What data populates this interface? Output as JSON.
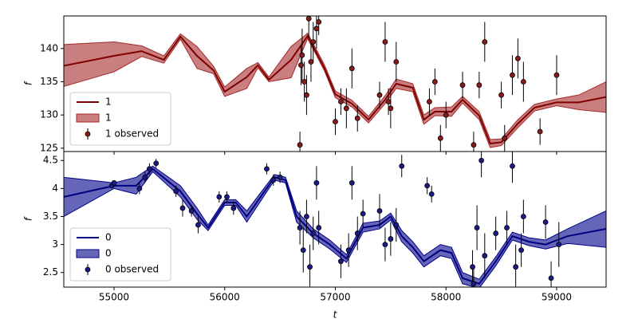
{
  "chart_data": [
    {
      "type": "line",
      "ylabel": "f",
      "legend": "lower left",
      "xlim": [
        54546,
        59447
      ],
      "ylim": [
        124.5,
        144.9
      ],
      "yticks": [
        125,
        130,
        135,
        140
      ],
      "x": [
        54546,
        55000,
        55250,
        55450,
        55600,
        55750,
        55900,
        56000,
        56200,
        56300,
        56400,
        56600,
        56750,
        56900,
        57000,
        57150,
        57300,
        57450,
        57550,
        57700,
        57800,
        57900,
        58050,
        58150,
        58300,
        58400,
        58500,
        58650,
        58800,
        59000,
        59200,
        59447
      ],
      "series": [
        {
          "name": "1",
          "color": "#800000",
          "values": [
            137.4,
            138.9,
            139.6,
            138.3,
            141.8,
            138.9,
            136.7,
            133.5,
            135.7,
            137.5,
            135.3,
            138.3,
            141.9,
            137.1,
            133.1,
            131.7,
            129.3,
            132.3,
            134.7,
            134.1,
            129.3,
            130.5,
            130.5,
            132.3,
            129.9,
            125.7,
            125.9,
            128.7,
            131.1,
            131.9,
            131.9,
            132.7
          ]
        },
        {
          "name": "1",
          "color": "#a52a2a",
          "lower": [
            134.3,
            136.5,
            138.8,
            137.8,
            141.4,
            137.0,
            136.2,
            132.8,
            134.0,
            137.1,
            135.0,
            135.6,
            141.5,
            136.7,
            132.6,
            131.2,
            128.8,
            131.7,
            134.0,
            133.5,
            128.6,
            129.9,
            129.8,
            131.8,
            129.3,
            125.1,
            125.4,
            128.1,
            130.6,
            131.4,
            130.8,
            130.4
          ],
          "upper": [
            140.6,
            141.0,
            140.4,
            138.9,
            142.2,
            140.3,
            137.3,
            134.2,
            137.0,
            137.9,
            135.7,
            140.3,
            142.3,
            137.6,
            133.6,
            132.2,
            129.8,
            132.9,
            135.4,
            134.7,
            130.0,
            131.1,
            131.2,
            132.8,
            130.5,
            126.3,
            126.4,
            129.3,
            131.6,
            132.4,
            133.0,
            135.0
          ]
        }
      ],
      "observed": {
        "name": "1 observed",
        "color": "#8b1a1a",
        "x": [
          56680,
          56690,
          56700,
          56720,
          56740,
          56760,
          56780,
          56800,
          56830,
          56850,
          57000,
          57050,
          57100,
          57150,
          57200,
          57400,
          57450,
          57480,
          57500,
          57550,
          57850,
          57900,
          57950,
          58000,
          58150,
          58250,
          58300,
          58350,
          58500,
          58530,
          58600,
          58650,
          58700,
          58850,
          59000
        ],
        "values": [
          125.5,
          137.5,
          139,
          135,
          133,
          144.5,
          138,
          141,
          143,
          144,
          129,
          132,
          131,
          137,
          129.5,
          133,
          141,
          132,
          131,
          138,
          132,
          135,
          126.5,
          130,
          134.5,
          125.5,
          134.5,
          141,
          133,
          126.5,
          136,
          138.5,
          135,
          127.5,
          136
        ],
        "errors": [
          2,
          3,
          4,
          3,
          3,
          3,
          3,
          3,
          3,
          2,
          2,
          2,
          3,
          3,
          2,
          2,
          3,
          2,
          3,
          3,
          2,
          2,
          2,
          2,
          2,
          2,
          2,
          3,
          2,
          2,
          3,
          3,
          3,
          2,
          3
        ]
      }
    },
    {
      "type": "line",
      "ylabel": "f",
      "xlabel": "t",
      "legend": "lower left",
      "xlim": [
        54546,
        59447
      ],
      "xticks": [
        55000,
        56000,
        57000,
        58000,
        59000
      ],
      "ylim": [
        2.24,
        4.66
      ],
      "yticks": [
        2.5,
        3.0,
        3.5,
        4.0,
        4.5
      ],
      "x": [
        54546,
        55000,
        55200,
        55350,
        55600,
        55750,
        55850,
        56000,
        56100,
        56200,
        56450,
        56550,
        56650,
        56800,
        56950,
        57100,
        57250,
        57400,
        57500,
        57600,
        57700,
        57800,
        57950,
        58050,
        58150,
        58300,
        58450,
        58600,
        58750,
        58900,
        59100,
        59447
      ],
      "series": [
        {
          "name": "0",
          "color": "#000080",
          "values": [
            3.85,
            4.05,
            4.05,
            4.35,
            3.95,
            3.55,
            3.3,
            3.75,
            3.75,
            3.5,
            4.2,
            4.15,
            3.5,
            3.2,
            3.0,
            2.75,
            3.3,
            3.35,
            3.5,
            3.15,
            2.95,
            2.7,
            2.9,
            2.85,
            2.4,
            2.3,
            2.7,
            3.15,
            3.05,
            3.0,
            3.15,
            3.28
          ]
        },
        {
          "name": "0",
          "color": "#00008b",
          "lower": [
            3.5,
            4.0,
            3.9,
            4.3,
            3.85,
            3.45,
            3.25,
            3.7,
            3.7,
            3.4,
            4.15,
            4.1,
            3.4,
            3.12,
            2.92,
            2.68,
            3.22,
            3.28,
            3.44,
            3.05,
            2.85,
            2.6,
            2.8,
            2.75,
            2.3,
            2.22,
            2.62,
            3.08,
            2.98,
            2.92,
            3.02,
            2.95
          ],
          "upper": [
            4.2,
            4.1,
            4.2,
            4.4,
            4.05,
            3.65,
            3.35,
            3.8,
            3.8,
            3.6,
            4.25,
            4.2,
            3.6,
            3.28,
            3.08,
            2.82,
            3.38,
            3.42,
            3.56,
            3.25,
            3.05,
            2.8,
            3.0,
            2.95,
            2.5,
            2.38,
            2.78,
            3.22,
            3.12,
            3.08,
            3.28,
            3.6
          ]
        }
      ],
      "observed": {
        "name": "0 observed",
        "color": "#1a1a8b",
        "x": [
          54980,
          55000,
          55230,
          55280,
          55320,
          55380,
          55560,
          55620,
          55700,
          55760,
          55950,
          56020,
          56080,
          56380,
          56440,
          56500,
          56680,
          56710,
          56740,
          56770,
          56800,
          56830,
          56850,
          57050,
          57120,
          57150,
          57200,
          57250,
          57400,
          57450,
          57500,
          57550,
          57600,
          57830,
          57870,
          58240,
          58250,
          58280,
          58320,
          58350,
          58450,
          58550,
          58600,
          58630,
          58680,
          58700,
          58900,
          58950,
          59020
        ],
        "values": [
          4.05,
          4.1,
          4.0,
          4.2,
          4.35,
          4.45,
          3.95,
          3.65,
          3.6,
          3.35,
          3.85,
          3.85,
          3.65,
          4.35,
          4.15,
          4.2,
          3.3,
          2.9,
          3.5,
          2.6,
          3.2,
          4.1,
          3.3,
          2.7,
          2.9,
          4.1,
          3.2,
          3.55,
          3.6,
          3.0,
          3.1,
          3.35,
          4.4,
          4.05,
          3.9,
          2.6,
          2.3,
          3.3,
          4.5,
          2.8,
          3.2,
          3.3,
          4.4,
          2.6,
          2.9,
          3.5,
          3.4,
          2.4,
          3.0
        ],
        "errors": [
          0.05,
          0.05,
          0.1,
          0.1,
          0.1,
          0.08,
          0.1,
          0.15,
          0.1,
          0.15,
          0.1,
          0.1,
          0.12,
          0.1,
          0.1,
          0.1,
          0.3,
          0.4,
          0.3,
          0.4,
          0.3,
          0.3,
          0.3,
          0.3,
          0.3,
          0.3,
          0.3,
          0.25,
          0.3,
          0.3,
          0.3,
          0.3,
          0.2,
          0.15,
          0.15,
          0.3,
          0.3,
          0.4,
          0.3,
          0.4,
          0.3,
          0.3,
          0.3,
          0.4,
          0.3,
          0.3,
          0.3,
          0.3,
          0.4
        ]
      }
    }
  ]
}
